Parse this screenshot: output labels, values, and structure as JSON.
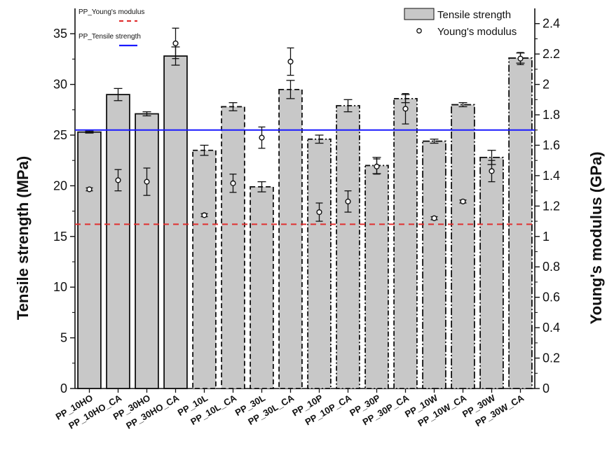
{
  "chart_data": {
    "type": "bar",
    "categories": [
      "PP_10HO",
      "PP_10HO_CA",
      "PP_30HO",
      "PP_30HO_CA",
      "PP_10L",
      "PP_10L_CA",
      "PP_30L",
      "PP_30L_CA",
      "PP_10P",
      "PP_10P_CA",
      "PP_30P",
      "PP_30P_CA",
      "PP_10W",
      "PP_10W_CA",
      "PP_30W",
      "PP_30W_CA"
    ],
    "series": [
      {
        "name": "Tensile strength",
        "axis": "left",
        "kind": "bar",
        "values": [
          25.3,
          29.0,
          27.1,
          32.8,
          23.5,
          27.8,
          19.9,
          29.5,
          24.6,
          27.9,
          22.0,
          28.6,
          24.4,
          28.0,
          22.8,
          32.6
        ],
        "errors": [
          0.1,
          0.6,
          0.2,
          0.9,
          0.5,
          0.4,
          0.5,
          0.9,
          0.4,
          0.6,
          0.8,
          0.4,
          0.2,
          0.2,
          0.7,
          0.5
        ]
      },
      {
        "name": "Young's modulus",
        "axis": "right",
        "kind": "marker",
        "values": [
          1.31,
          1.37,
          1.36,
          2.27,
          1.14,
          1.35,
          1.65,
          2.15,
          1.16,
          1.23,
          1.46,
          1.84,
          1.12,
          1.23,
          1.43,
          2.17
        ],
        "errors": [
          0.01,
          0.07,
          0.09,
          0.1,
          0.01,
          0.06,
          0.07,
          0.09,
          0.06,
          0.07,
          0.05,
          0.1,
          0.01,
          0.01,
          0.07,
          0.04
        ]
      }
    ],
    "bar_styles": [
      "solid",
      "solid",
      "solid",
      "solid",
      "dashed",
      "dashed",
      "dashed",
      "dashed",
      "dashdot",
      "dashdot",
      "dashdot",
      "dashdot",
      "dashdotlong",
      "dashdotlong",
      "dashdotlong",
      "dashdotlong"
    ],
    "reference_lines": [
      {
        "name": "PP_Young's modulus",
        "axis": "right",
        "value": 1.08,
        "color": "#e03030",
        "style": "dashed"
      },
      {
        "name": "PP_Tensile strength",
        "axis": "left",
        "value": 25.5,
        "color": "#1a1aff",
        "style": "solid"
      }
    ],
    "ylabel": "Tensile strength (MPa)",
    "ylabel_right": "Young's modulus (GPa)",
    "xlabel": "",
    "title": "",
    "ylim": [
      0,
      37.5
    ],
    "ylim_right": [
      0,
      2.5
    ],
    "yticks": [
      0,
      5,
      10,
      15,
      20,
      25,
      30,
      35
    ],
    "yticks_right": [
      "0",
      "0.2",
      "0.4",
      "0.6",
      "0.8",
      "1",
      "1.2",
      "1.4",
      "1.6",
      "1.8",
      "2",
      "2.2",
      "2.4"
    ],
    "legend_position": "top-right",
    "grid": false,
    "colors": {
      "bar_fill": "#c8c8c8",
      "bar_stroke": "#111111",
      "marker_fill": "#ffffff",
      "marker_stroke": "#111111"
    }
  }
}
